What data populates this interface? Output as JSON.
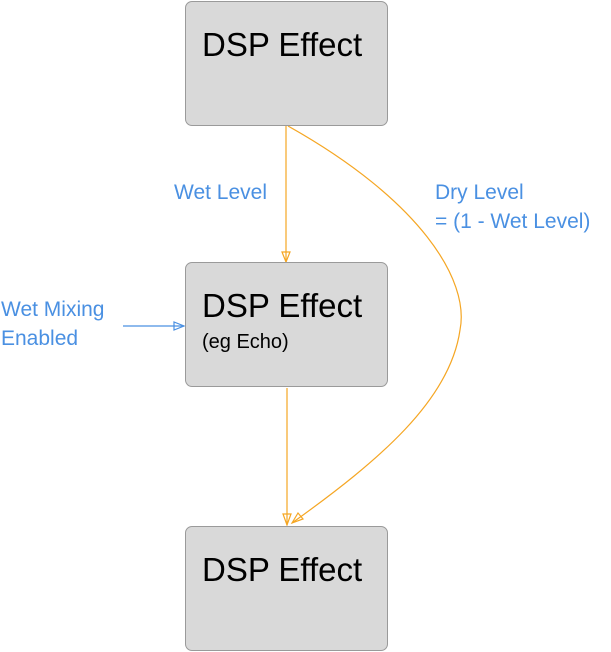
{
  "nodes": [
    {
      "title": "DSP Effect",
      "subtitle": ""
    },
    {
      "title": "DSP Effect",
      "subtitle": "(eg Echo)"
    },
    {
      "title": "DSP Effect",
      "subtitle": ""
    }
  ],
  "labels": {
    "wet_level": "Wet Level",
    "dry_level_line1": "Dry Level",
    "dry_level_line2": "= (1 - Wet Level)",
    "wet_mixing_line1": "Wet Mixing",
    "wet_mixing_line2": "Enabled"
  },
  "colors": {
    "edge": "#f5a623",
    "annotation": "#4a90e2",
    "node_fill": "#d9d9d9"
  }
}
